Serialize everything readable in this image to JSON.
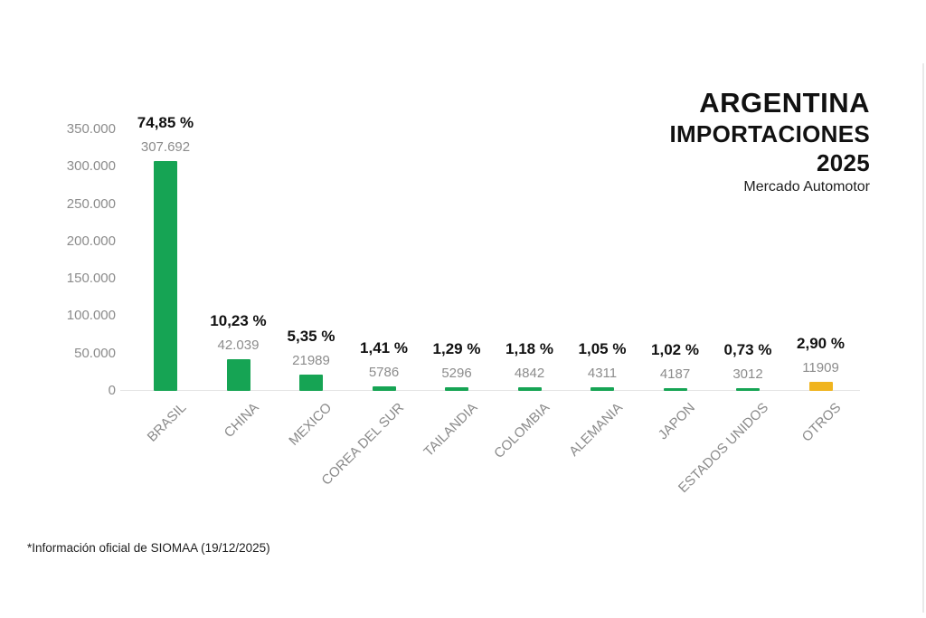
{
  "header": {
    "title_line1": "ARGENTINA",
    "title_line2": "IMPORTACIONES",
    "title_line3": "2025",
    "subtitle": "Mercado Automotor"
  },
  "footer": {
    "note": "*Información oficial de SIOMAA (19/12/2025)"
  },
  "colors": {
    "bar_green": "#16a454",
    "bar_yellow": "#f0b41e",
    "pct_text": "#111111",
    "value_text": "#8c8c8c",
    "axis_text": "#8c8c8c",
    "baseline": "#e4e4e4"
  },
  "chart_data": {
    "type": "bar",
    "title": "ARGENTINA IMPORTACIONES 2025",
    "subtitle": "Mercado Automotor",
    "categories": [
      "BRASIL",
      "CHINA",
      "MEXICO",
      "COREA DEL SUR",
      "TAILANDIA",
      "COLOMBIA",
      "ALEMANIA",
      "JAPON",
      "ESTADOS UNIDOS",
      "OTROS"
    ],
    "values": [
      307692,
      42039,
      21989,
      5786,
      5296,
      4842,
      4311,
      4187,
      3012,
      11909
    ],
    "value_labels": [
      "307.692",
      "42.039",
      "21989",
      "5786",
      "5296",
      "4842",
      "4311",
      "4187",
      "3012",
      "11909"
    ],
    "pct_labels": [
      "74,85 %",
      "10,23 %",
      "5,35 %",
      "1,41 %",
      "1,29 %",
      "1,18 %",
      "1,05 %",
      "1,02 %",
      "0,73 %",
      "2,90 %"
    ],
    "highlight_index": 9,
    "xlabel": "",
    "ylabel": "",
    "ylim": [
      0,
      350000
    ],
    "yticks": [
      {
        "value": 0,
        "label": "0"
      },
      {
        "value": 50000,
        "label": "50.000"
      },
      {
        "value": 100000,
        "label": "100.000"
      },
      {
        "value": 150000,
        "label": "150.000"
      },
      {
        "value": 200000,
        "label": "200.000"
      },
      {
        "value": 250000,
        "label": "250.000"
      },
      {
        "value": 300000,
        "label": "300.000"
      },
      {
        "value": 350000,
        "label": "350.000"
      }
    ],
    "grid": false,
    "legend": false,
    "bar_label_rotation_deg": -45
  }
}
